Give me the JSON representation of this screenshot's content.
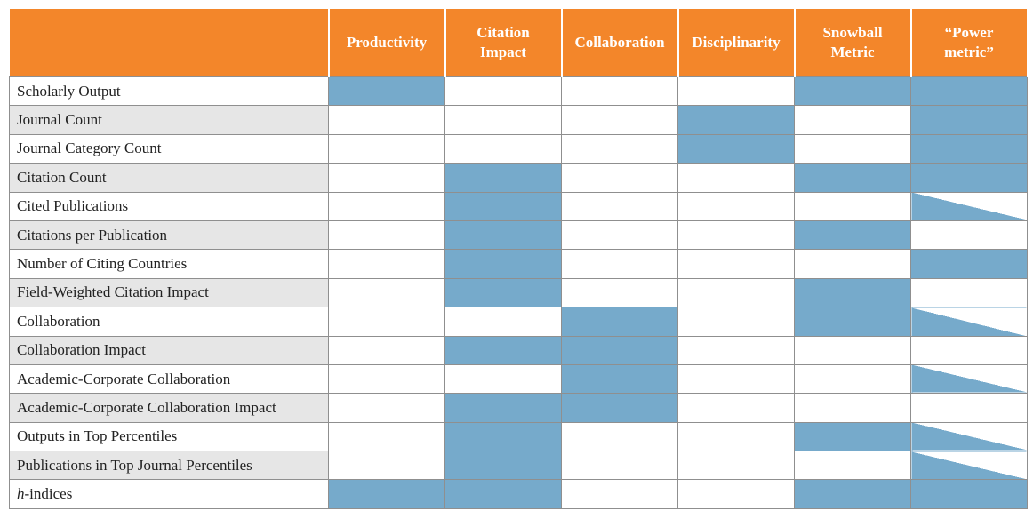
{
  "table": {
    "columns": [
      {
        "lines": [
          "Productivity"
        ]
      },
      {
        "lines": [
          "Citation",
          "Impact"
        ]
      },
      {
        "lines": [
          "Collaboration"
        ]
      },
      {
        "lines": [
          "Disciplinarity"
        ]
      },
      {
        "lines": [
          "Snowball",
          "Metric"
        ]
      },
      {
        "lines": [
          "“Power",
          "metric”"
        ]
      }
    ],
    "rows": [
      {
        "label": "Scholarly Output",
        "cells": [
          "on",
          "off",
          "off",
          "off",
          "on",
          "on"
        ]
      },
      {
        "label": "Journal Count",
        "cells": [
          "off",
          "off",
          "off",
          "on",
          "off",
          "on"
        ]
      },
      {
        "label": "Journal Category Count",
        "cells": [
          "off",
          "off",
          "off",
          "on",
          "off",
          "on"
        ]
      },
      {
        "label": "Citation Count",
        "cells": [
          "off",
          "on",
          "off",
          "off",
          "on",
          "on"
        ]
      },
      {
        "label": "Cited Publications",
        "cells": [
          "off",
          "on",
          "off",
          "off",
          "off",
          "partial"
        ]
      },
      {
        "label": "Citations per Publication",
        "cells": [
          "off",
          "on",
          "off",
          "off",
          "on",
          "off"
        ]
      },
      {
        "label": "Number of Citing Countries",
        "cells": [
          "off",
          "on",
          "off",
          "off",
          "off",
          "on"
        ]
      },
      {
        "label": "Field-Weighted Citation Impact",
        "cells": [
          "off",
          "on",
          "off",
          "off",
          "on",
          "off"
        ]
      },
      {
        "label": "Collaboration",
        "cells": [
          "off",
          "off",
          "on",
          "off",
          "on",
          "partial"
        ]
      },
      {
        "label": "Collaboration Impact",
        "cells": [
          "off",
          "on",
          "on",
          "off",
          "off",
          "off"
        ]
      },
      {
        "label": "Academic-Corporate Collaboration",
        "cells": [
          "off",
          "off",
          "on",
          "off",
          "off",
          "partial"
        ]
      },
      {
        "label": "Academic-Corporate Collaboration Impact",
        "cells": [
          "off",
          "on",
          "on",
          "off",
          "off",
          "off"
        ]
      },
      {
        "label": "Outputs in Top Percentiles",
        "cells": [
          "off",
          "on",
          "off",
          "off",
          "on",
          "partial"
        ]
      },
      {
        "label": "Publications in Top Journal Percentiles",
        "cells": [
          "off",
          "on",
          "off",
          "off",
          "off",
          "partial"
        ]
      },
      {
        "label": "h-indices",
        "label_italic": "h",
        "label_rest": "-indices",
        "cells": [
          "on",
          "on",
          "off",
          "off",
          "on",
          "on"
        ]
      }
    ]
  },
  "colors": {
    "header_bg": "#f3862a",
    "marked": "#76aacb",
    "label_shade": "#e6e6e6"
  }
}
